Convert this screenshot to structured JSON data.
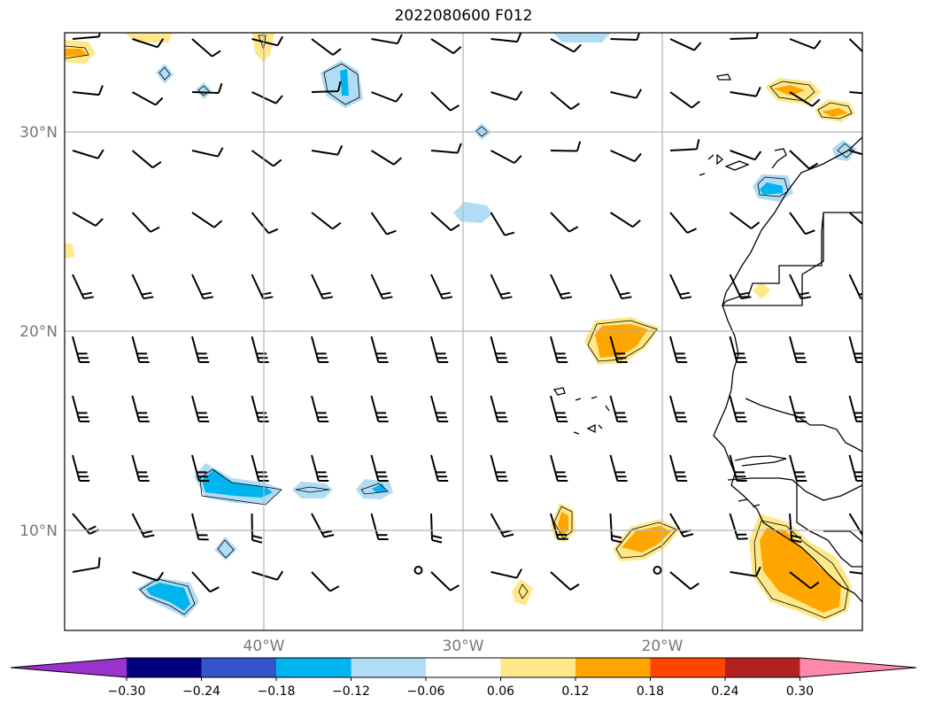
{
  "title": "2022080600 F012",
  "lat_labels": [
    "30°N",
    "20°N",
    "10°N"
  ],
  "lon_labels": [
    "40°W",
    "30°W",
    "20°W"
  ],
  "colorbar": {
    "ticks": [
      "−0.30",
      "−0.24",
      "−0.18",
      "−0.12",
      "−0.06",
      "0.06",
      "0.12",
      "0.18",
      "0.24",
      "0.30"
    ],
    "colors": [
      "#9933cc",
      "#000080",
      "#3355cc",
      "#00b4f0",
      "#b0dcf4",
      "#ffffff",
      "#ffe88a",
      "#ffa500",
      "#ff4500",
      "#b22222",
      "#ff88aa"
    ]
  },
  "map": {
    "grid_lats": [
      30,
      20,
      10
    ],
    "grid_lons": [
      -40,
      -30,
      -20
    ],
    "extent": {
      "lon_min": -50,
      "lon_max": -10,
      "lat_min": 5,
      "lat_max": 35
    }
  }
}
